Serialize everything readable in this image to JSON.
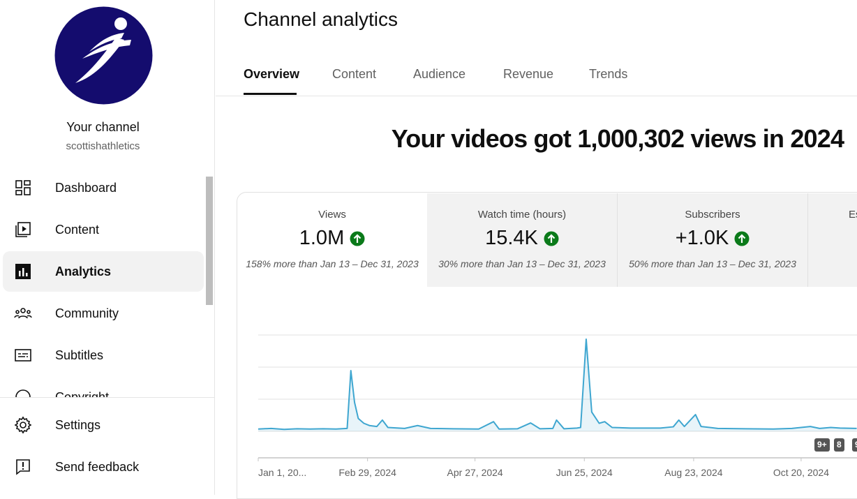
{
  "channel": {
    "label": "Your channel",
    "handle": "scottishathletics"
  },
  "nav": [
    "Dashboard",
    "Content",
    "Analytics",
    "Community",
    "Subtitles",
    "Copyright"
  ],
  "nav_bottom": [
    "Settings",
    "Send feedback"
  ],
  "header": {
    "title": "Channel analytics",
    "tabs": [
      "Overview",
      "Content",
      "Audience",
      "Revenue",
      "Trends"
    ]
  },
  "headline": "Your videos got 1,000,302 views in 2024",
  "cards": [
    {
      "label": "Views",
      "value": "1.0M",
      "comparison": "158% more than Jan 13 – Dec 31, 2023"
    },
    {
      "label": "Watch time (hours)",
      "value": "15.4K",
      "comparison": "30% more than Jan 13 – Dec 31, 2023"
    },
    {
      "label": "Subscribers",
      "value": "+1.0K",
      "comparison": "50% more than Jan 13 – Dec 31, 2023"
    },
    {
      "label": "Es"
    }
  ],
  "chart_data": {
    "type": "line",
    "x": [
      "2024-01-01",
      "2024-01-08",
      "2024-01-15",
      "2024-01-22",
      "2024-01-29",
      "2024-02-05",
      "2024-02-12",
      "2024-02-18",
      "2024-02-20",
      "2024-02-22",
      "2024-02-24",
      "2024-02-27",
      "2024-03-01",
      "2024-03-05",
      "2024-03-08",
      "2024-03-11",
      "2024-03-20",
      "2024-03-27",
      "2024-04-03",
      "2024-04-15",
      "2024-04-29",
      "2024-05-07",
      "2024-05-10",
      "2024-05-20",
      "2024-05-27",
      "2024-06-01",
      "2024-06-08",
      "2024-06-10",
      "2024-06-14",
      "2024-06-21",
      "2024-06-23",
      "2024-06-26",
      "2024-06-29",
      "2024-07-03",
      "2024-07-06",
      "2024-07-10",
      "2024-07-20",
      "2024-08-05",
      "2024-08-12",
      "2024-08-15",
      "2024-08-18",
      "2024-08-24",
      "2024-08-27",
      "2024-09-05",
      "2024-09-20",
      "2024-10-05",
      "2024-10-15",
      "2024-10-25",
      "2024-10-30",
      "2024-11-05",
      "2024-11-10",
      "2024-11-19"
    ],
    "series": [
      {
        "color": "#3ea6d0",
        "values": [
          700,
          900,
          600,
          800,
          700,
          800,
          700,
          900,
          18900,
          9000,
          4000,
          2500,
          1800,
          1500,
          3500,
          1200,
          900,
          1800,
          900,
          800,
          700,
          3000,
          700,
          800,
          2600,
          800,
          900,
          3500,
          800,
          1000,
          1200,
          28700,
          6000,
          2500,
          3000,
          1200,
          1000,
          1000,
          1400,
          3500,
          1500,
          5200,
          1500,
          900,
          800,
          700,
          900,
          1500,
          900,
          1200,
          1000,
          900
        ]
      }
    ],
    "ylim": [
      0,
      30000
    ],
    "yticks": [
      0,
      10000,
      20000,
      30000
    ],
    "grid": true,
    "xticks": [
      {
        "value": "2024-01-01",
        "label": "Jan 1, 20..."
      },
      {
        "value": "2024-02-29",
        "label": "Feb 29, 2024"
      },
      {
        "value": "2024-04-27",
        "label": "Apr 27, 2024"
      },
      {
        "value": "2024-06-25",
        "label": "Jun 25, 2024"
      },
      {
        "value": "2024-08-23",
        "label": "Aug 23, 2024"
      },
      {
        "value": "2024-10-20",
        "label": "Oct 20, 2024"
      }
    ]
  },
  "badges": [
    "9+",
    "8",
    "9"
  ]
}
